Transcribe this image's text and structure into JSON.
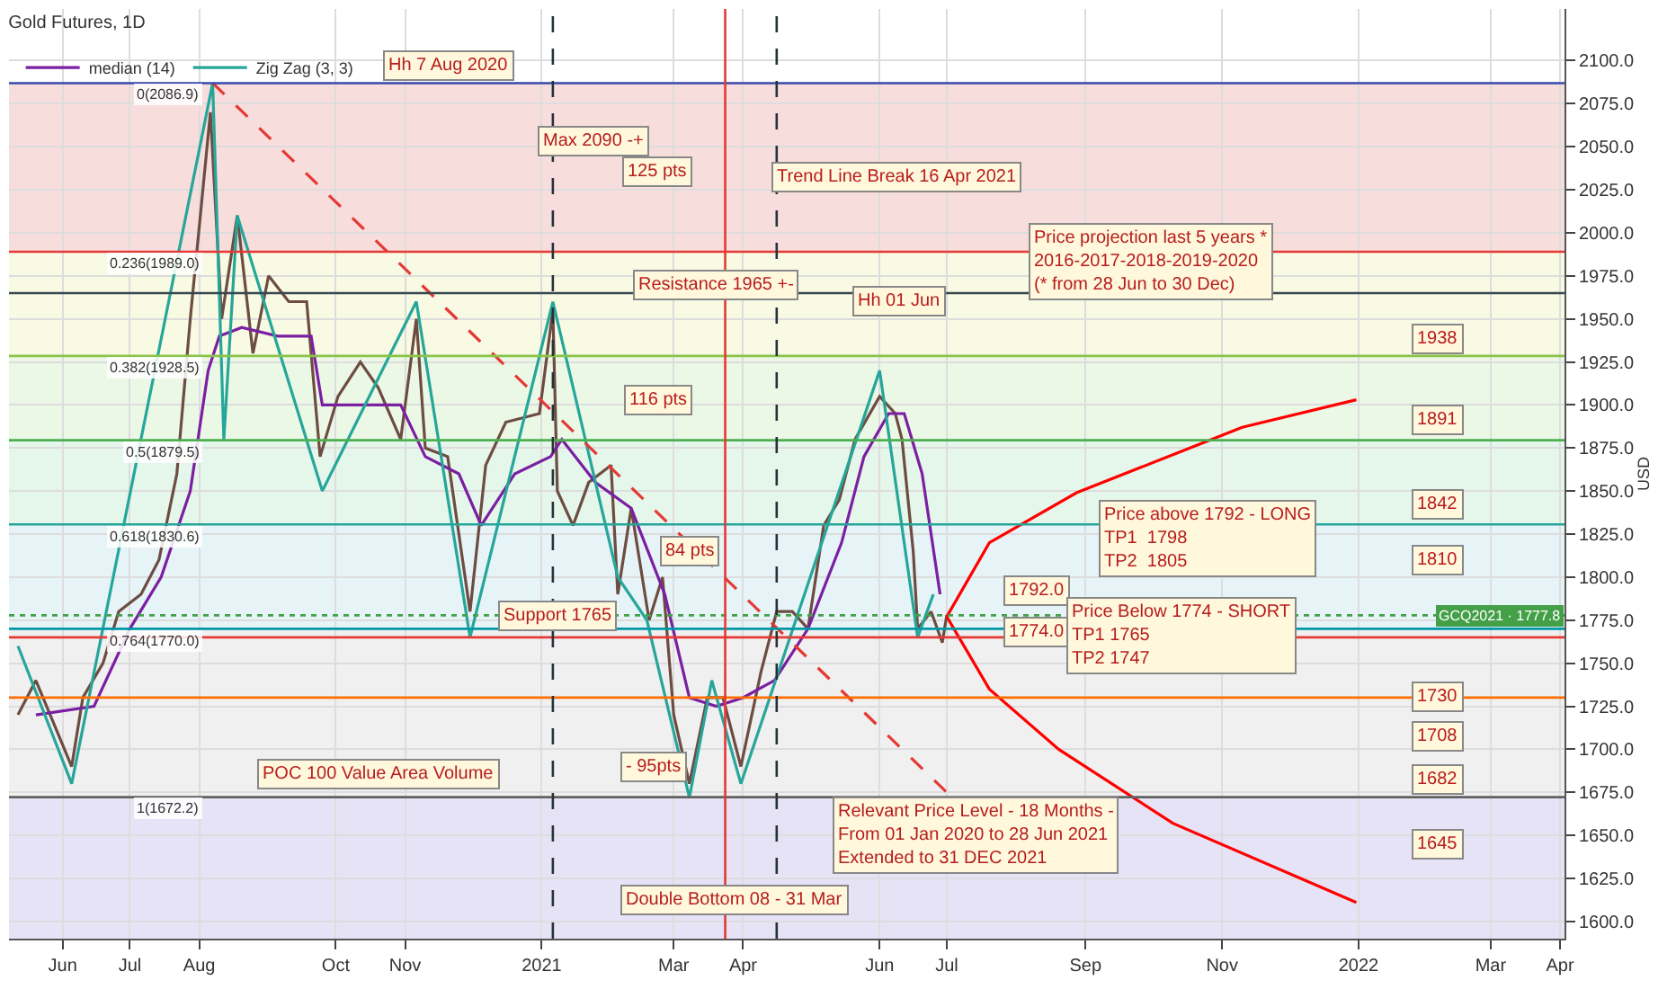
{
  "chart_data": {
    "type": "line",
    "title": "Gold Futures, 1D",
    "ylabel": "USD",
    "x": [
      "2020-05-12",
      "2020-05-20",
      "2020-05-28",
      "2020-06-05",
      "2020-06-10",
      "2020-06-19",
      "2020-06-26",
      "2020-07-06",
      "2020-07-14",
      "2020-07-22",
      "2020-07-28",
      "2020-08-06",
      "2020-08-11",
      "2020-08-18",
      "2020-08-25",
      "2020-09-01",
      "2020-09-10",
      "2020-09-18",
      "2020-09-24",
      "2020-10-02",
      "2020-10-12",
      "2020-10-20",
      "2020-10-30",
      "2020-11-06",
      "2020-11-10",
      "2020-11-20",
      "2020-11-30",
      "2020-12-07",
      "2020-12-16",
      "2020-12-31",
      "2021-01-06",
      "2021-01-08",
      "2021-01-15",
      "2021-01-22",
      "2021-02-01",
      "2021-02-04",
      "2021-02-10",
      "2021-02-18",
      "2021-02-24",
      "2021-03-01",
      "2021-03-08",
      "2021-03-16",
      "2021-03-23",
      "2021-03-31",
      "2021-04-09",
      "2021-04-16",
      "2021-04-23",
      "2021-04-30",
      "2021-05-07",
      "2021-05-14",
      "2021-05-21",
      "2021-06-01",
      "2021-06-08",
      "2021-06-11",
      "2021-06-16",
      "2021-06-18",
      "2021-06-24",
      "2021-06-29",
      "2021-07-01"
    ],
    "series": [
      {
        "color": "#6d4c41",
        "values": [
          1720,
          1740,
          1715,
          1690,
          1730,
          1750,
          1780,
          1790,
          1810,
          1860,
          1950,
          2070,
          1950,
          2010,
          1930,
          1975,
          1960,
          1960,
          1870,
          1905,
          1925,
          1910,
          1880,
          1950,
          1875,
          1870,
          1780,
          1865,
          1890,
          1895,
          1955,
          1850,
          1830,
          1855,
          1865,
          1790,
          1840,
          1775,
          1800,
          1720,
          1680,
          1730,
          1730,
          1690,
          1745,
          1780,
          1780,
          1770,
          1830,
          1845,
          1880,
          1905,
          1895,
          1880,
          1815,
          1770,
          1780,
          1762,
          1778
        ]
      },
      {
        "name": "median (14)",
        "color": "#7b1fa2",
        "x": [
          "2020-05-20",
          "2020-06-15",
          "2020-07-01",
          "2020-07-15",
          "2020-07-28",
          "2020-08-05",
          "2020-08-10",
          "2020-08-20",
          "2020-09-05",
          "2020-09-20",
          "2020-09-25",
          "2020-10-15",
          "2020-10-30",
          "2020-11-10",
          "2020-11-25",
          "2020-12-05",
          "2020-12-20",
          "2021-01-05",
          "2021-01-10",
          "2021-01-25",
          "2021-02-10",
          "2021-02-25",
          "2021-03-08",
          "2021-03-20",
          "2021-04-01",
          "2021-04-15",
          "2021-04-30",
          "2021-05-15",
          "2021-05-25",
          "2021-06-05",
          "2021-06-12",
          "2021-06-20",
          "2021-06-28"
        ],
        "values": [
          1720,
          1725,
          1770,
          1800,
          1850,
          1920,
          1940,
          1945,
          1940,
          1940,
          1900,
          1900,
          1900,
          1870,
          1860,
          1830,
          1860,
          1870,
          1880,
          1855,
          1840,
          1790,
          1730,
          1725,
          1730,
          1740,
          1770,
          1820,
          1870,
          1895,
          1895,
          1860,
          1790
        ]
      },
      {
        "name": "Zig Zag (3, 3)",
        "color": "#26a69a",
        "x": [
          "2020-05-12",
          "2020-06-05",
          "2020-08-07",
          "2020-08-12",
          "2020-08-18",
          "2020-09-25",
          "2020-11-06",
          "2020-11-30",
          "2021-01-06",
          "2021-02-04",
          "2021-02-17",
          "2021-03-08",
          "2021-03-18",
          "2021-03-31",
          "2021-06-01",
          "2021-06-18",
          "2021-06-25"
        ],
        "values": [
          1760,
          1680,
          2087,
          1880,
          2010,
          1850,
          1960,
          1765,
          1960,
          1800,
          1775,
          1672,
          1740,
          1680,
          1920,
          1765,
          1790
        ]
      },
      {
        "color": "#e53935",
        "line_style": "dashed",
        "x": [
          "2020-08-07",
          "2021-07-01"
        ],
        "values": [
          2087,
          1675
        ]
      },
      {
        "color": "#ff0000",
        "x": [
          "2021-07-01",
          "2021-07-20",
          "2021-08-28",
          "2021-11-10",
          "2021-12-31"
        ],
        "values": [
          1777,
          1820,
          1849,
          1887,
          1903
        ]
      },
      {
        "color": "#ff0000",
        "x": [
          "2021-07-01",
          "2021-07-20",
          "2021-08-20",
          "2021-10-10",
          "2021-12-31"
        ],
        "values": [
          1777,
          1735,
          1700,
          1657,
          1611
        ]
      }
    ],
    "xlim": [
      "2020-05-08",
      "2022-04-03"
    ],
    "ylim": [
      1590,
      2130
    ],
    "xticks": [
      {
        "value": "2020-06-01",
        "label": "Jun"
      },
      {
        "value": "2020-07-01",
        "label": "Jul"
      },
      {
        "value": "2020-08-01",
        "label": "Aug"
      },
      {
        "value": "2020-10-01",
        "label": "Oct"
      },
      {
        "value": "2020-11-01",
        "label": "Nov"
      },
      {
        "value": "2021-01-01",
        "label": "2021"
      },
      {
        "value": "2021-03-01",
        "label": "Mar"
      },
      {
        "value": "2021-04-01",
        "label": "Apr"
      },
      {
        "value": "2021-06-01",
        "label": "Jun"
      },
      {
        "value": "2021-07-01",
        "label": "Jul"
      },
      {
        "value": "2021-09-01",
        "label": "Sep"
      },
      {
        "value": "2021-11-01",
        "label": "Nov"
      },
      {
        "value": "2022-01-01",
        "label": "2022"
      },
      {
        "value": "2022-03-01",
        "label": "Mar"
      },
      {
        "value": "2022-04-01",
        "label": "Apr"
      }
    ],
    "yticks": [
      {
        "value": 1600,
        "label": "1600.0"
      },
      {
        "value": 1625,
        "label": "1625.0"
      },
      {
        "value": 1650,
        "label": "1650.0"
      },
      {
        "value": 1675,
        "label": "1675.0"
      },
      {
        "value": 1700,
        "label": "1700.0"
      },
      {
        "value": 1725,
        "label": "1725.0"
      },
      {
        "value": 1750,
        "label": "1750.0"
      },
      {
        "value": 1775,
        "label": "1775.0"
      },
      {
        "value": 1800,
        "label": "1800.0"
      },
      {
        "value": 1825,
        "label": "1825.0"
      },
      {
        "value": 1850,
        "label": "1850.0"
      },
      {
        "value": 1875,
        "label": "1875.0"
      },
      {
        "value": 1900,
        "label": "1900.0"
      },
      {
        "value": 1925,
        "label": "1925.0"
      },
      {
        "value": 1950,
        "label": "1950.0"
      },
      {
        "value": 1975,
        "label": "1975.0"
      },
      {
        "value": 2000,
        "label": "2000.0"
      },
      {
        "value": 2025,
        "label": "2025.0"
      },
      {
        "value": 2050,
        "label": "2050.0"
      },
      {
        "value": 2075,
        "label": "2075.0"
      },
      {
        "value": 2100,
        "label": "2100.0"
      }
    ],
    "grid": true,
    "legend": "top left",
    "bands": [
      {
        "axis": "y",
        "from": 1989.0,
        "to": 2086.9,
        "color": "#f4c7c7"
      },
      {
        "axis": "y",
        "from": 1928.5,
        "to": 1989.0,
        "color": "#f3f6d0"
      },
      {
        "axis": "y",
        "from": 1879.5,
        "to": 1928.5,
        "color": "#dff3d6"
      },
      {
        "axis": "y",
        "from": 1830.6,
        "to": 1879.5,
        "color": "#d4f0dc"
      },
      {
        "axis": "y",
        "from": 1770.0,
        "to": 1830.6,
        "color": "#d6ecf3"
      },
      {
        "axis": "y",
        "from": 1672.2,
        "to": 1770.0,
        "color": "#e6e6e6"
      },
      {
        "axis": "y",
        "from": 1590,
        "to": 1672.2,
        "color": "#d5d0f0"
      }
    ],
    "ref_lines": [
      {
        "axis": "y",
        "value": 2086.9,
        "label": "0(2086.9)",
        "color": "#3949ab"
      },
      {
        "axis": "y",
        "value": 1989.0,
        "label": "0.236(1989.0)",
        "color": "#e53935"
      },
      {
        "axis": "y",
        "value": 1928.5,
        "label": "0.382(1928.5)",
        "color": "#8bc34a"
      },
      {
        "axis": "y",
        "value": 1879.5,
        "label": "0.5(1879.5)",
        "color": "#4caf50"
      },
      {
        "axis": "y",
        "value": 1830.6,
        "label": "0.618(1830.6)",
        "color": "#26a69a"
      },
      {
        "axis": "y",
        "value": 1770.0,
        "label": "0.764(1770.0)",
        "color": "#0097a7"
      },
      {
        "axis": "y",
        "value": 1672.2,
        "label": "1(1672.2)",
        "color": "#616161"
      },
      {
        "axis": "y",
        "value": 1965,
        "label": null,
        "color": "#37474f"
      },
      {
        "axis": "y",
        "value": 1765,
        "label": null,
        "color": "#e53935"
      },
      {
        "axis": "y",
        "value": 1730,
        "label": null,
        "color": "#ff6d00"
      },
      {
        "axis": "y",
        "value": 1777.8,
        "label": "GCQ2021 · 1777.8",
        "color": "#43a047",
        "line_style": "dotted"
      },
      {
        "axis": "x",
        "value": "2021-01-06",
        "label": null,
        "color": "#263238",
        "line_style": "dashed"
      },
      {
        "axis": "x",
        "value": "2021-04-16",
        "label": null,
        "color": "#263238",
        "line_style": "dashed"
      },
      {
        "axis": "x",
        "value": "2021-03-24",
        "label": null,
        "color": "#e53935"
      }
    ],
    "annotations": [
      "Hh 7 Aug 2020",
      "Max 2090 -+",
      {
        "text": "125 pts",
        "x": "2021-02-22",
        "y": 2035
      },
      "Trend Line Break 16 Apr 2021",
      {
        "text": "Resistance 1965 +-",
        "x": "2021-03-20",
        "y": 1970
      },
      {
        "text": "Hh 01 Jun",
        "x": "2021-06-10",
        "y": 1960
      },
      {
        "text": "116 pts",
        "x": "2021-02-22",
        "y": 1903
      },
      {
        "text": "84 pts",
        "x": "2021-03-08",
        "y": 1815
      },
      "Support 1765",
      {
        "text": "- 95pts",
        "x": "2021-02-20",
        "y": 1690
      },
      "POC 100 Value Area Volume",
      {
        "text": "Double Bottom 08 - 31 Mar",
        "x": "2021-03-28",
        "y": 1612
      },
      "Price projection last 5 years *\n2016-2017-2018-2019-2020\n(* from 28 Jun to 30 Dec)",
      "Price above 1792 - LONG\nTP1  1798\nTP2  1805",
      {
        "text": "1792.0",
        "x": "2021-08-10",
        "y": 1792
      },
      {
        "text": "1774.0",
        "x": "2021-08-10",
        "y": 1768
      },
      "Price Below 1774 - SHORT\nTP1 1765\nTP2 1747",
      "Relevant Price Level - 18 Months -\nFrom 01 Jan 2020 to 28 Jun 2021\nExtended to 31 DEC 2021",
      {
        "text": "1938",
        "x": "2022-02-05",
        "y": 1938
      },
      {
        "text": "1891",
        "x": "2022-02-05",
        "y": 1891
      },
      {
        "text": "1842",
        "x": "2022-02-05",
        "y": 1842
      },
      {
        "text": "1810",
        "x": "2022-02-05",
        "y": 1810
      },
      {
        "text": "1730",
        "x": "2022-02-05",
        "y": 1730
      },
      {
        "text": "1708",
        "x": "2022-02-05",
        "y": 1708
      },
      {
        "text": "1682",
        "x": "2022-02-05",
        "y": 1682
      },
      {
        "text": "1645",
        "x": "2022-02-05",
        "y": 1645
      }
    ]
  }
}
